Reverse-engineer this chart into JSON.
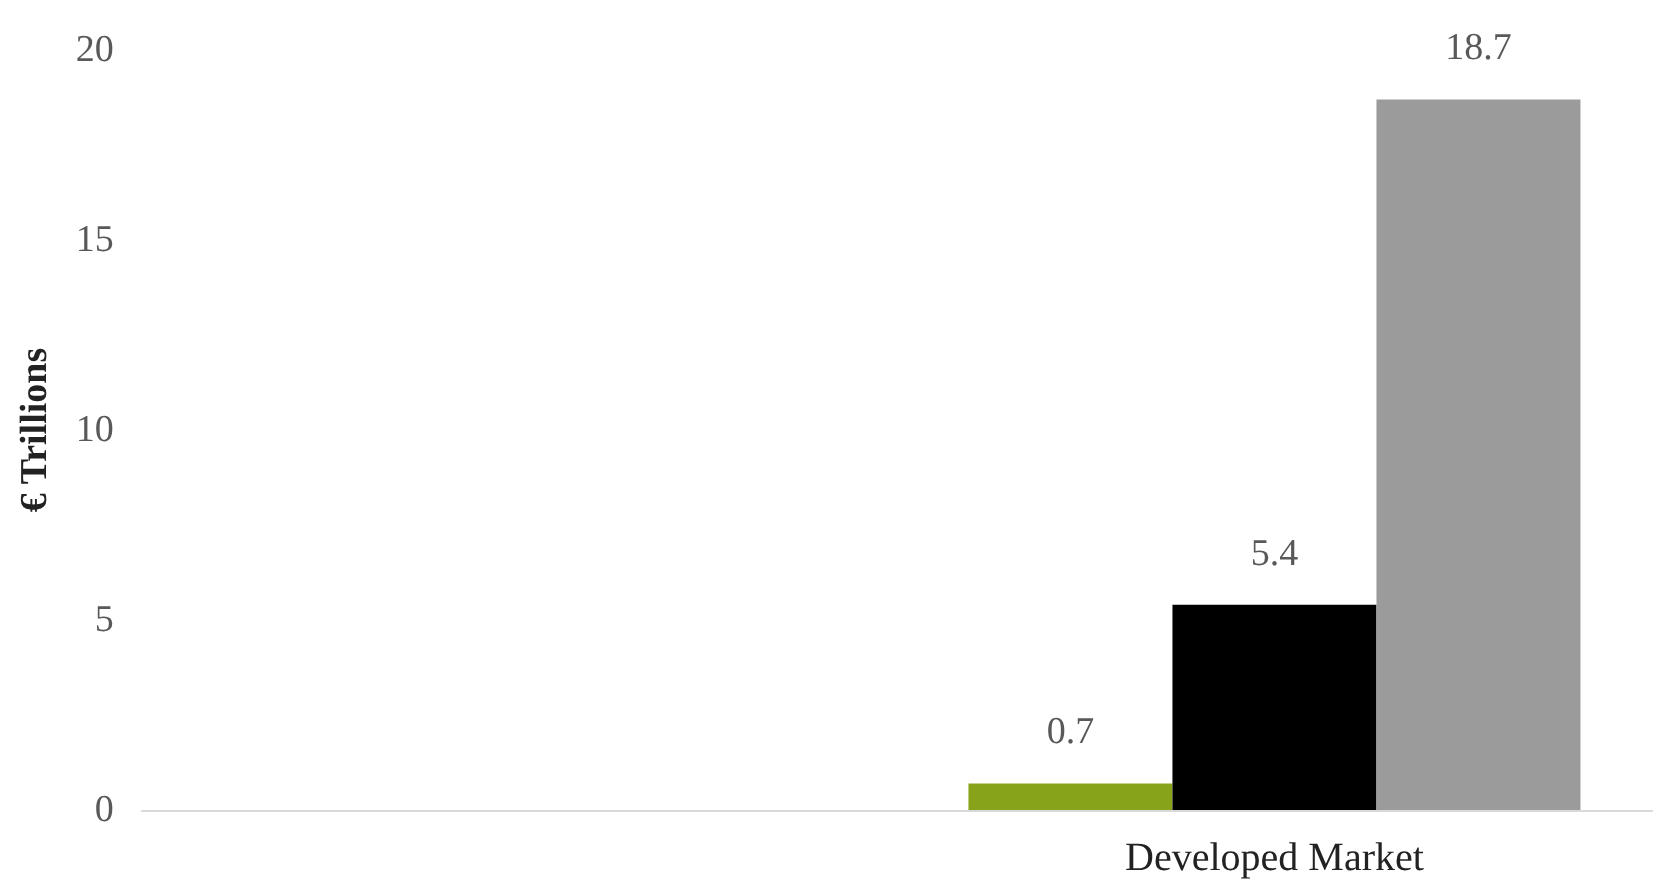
{
  "chart_data": {
    "type": "bar",
    "ylabel": "€ Trillions",
    "categories": [
      null,
      "Developed Market"
    ],
    "series": [
      {
        "color": "#87a31a",
        "values": [
          null,
          0.7
        ]
      },
      {
        "color": "#000000",
        "values": [
          null,
          5.4
        ]
      },
      {
        "color": "#9b9b9b",
        "values": [
          null,
          18.7
        ]
      }
    ],
    "ylim": [
      0,
      20
    ],
    "yticks": [
      0,
      5,
      10,
      15,
      20
    ],
    "grid": false,
    "data_labels": true
  }
}
